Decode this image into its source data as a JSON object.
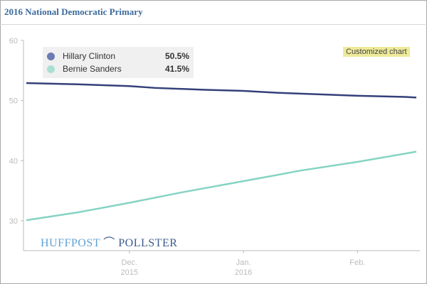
{
  "title": "2016 National Democratic Primary",
  "badge": "Customized chart",
  "logo": {
    "left": "HUFFPOST",
    "right": "POLLSTER"
  },
  "legend": [
    {
      "name": "Hillary Clinton",
      "value": "50.5%",
      "color": "#6b7bb3"
    },
    {
      "name": "Bernie Sanders",
      "value": "41.5%",
      "color": "#a9e0d4"
    }
  ],
  "chart_data": {
    "type": "line",
    "title": "2016 National Democratic Primary",
    "x_unit": "days since Dec 1 2015",
    "xlim": [
      -28,
      78
    ],
    "ylim": [
      25,
      60
    ],
    "yticks": [
      30,
      40,
      50,
      60
    ],
    "xticks": [
      {
        "x": 0,
        "label": [
          "Dec.",
          "2015"
        ]
      },
      {
        "x": 31,
        "label": [
          "Jan.",
          "2016"
        ]
      },
      {
        "x": 62,
        "label": [
          "Feb.",
          ""
        ]
      }
    ],
    "series": [
      {
        "name": "Hillary Clinton",
        "color": "#34407a",
        "points": [
          [
            -28,
            52.9
          ],
          [
            -14,
            52.7
          ],
          [
            0,
            52.4
          ],
          [
            7,
            52.1
          ],
          [
            20,
            51.8
          ],
          [
            31,
            51.6
          ],
          [
            40,
            51.3
          ],
          [
            62,
            50.8
          ],
          [
            75,
            50.6
          ],
          [
            78,
            50.5
          ]
        ]
      },
      {
        "name": "Bernie Sanders",
        "color": "#86d3c4",
        "points": [
          [
            -28,
            30.1
          ],
          [
            -14,
            31.4
          ],
          [
            0,
            33.0
          ],
          [
            14,
            34.7
          ],
          [
            31,
            36.6
          ],
          [
            40,
            37.6
          ],
          [
            46,
            38.3
          ],
          [
            62,
            39.8
          ],
          [
            78,
            41.5
          ]
        ]
      }
    ]
  }
}
